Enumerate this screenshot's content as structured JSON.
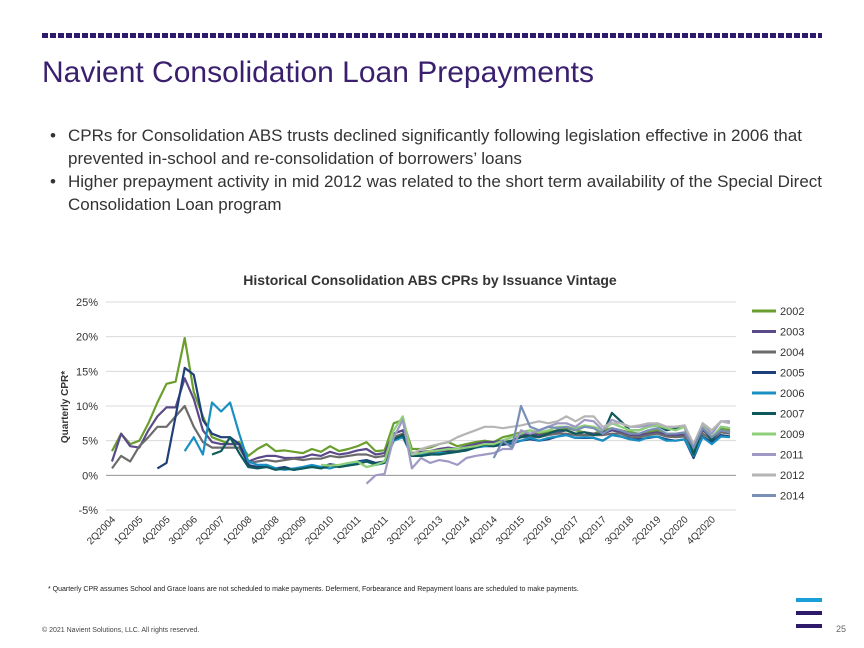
{
  "slide": {
    "title": "Navient Consolidation Loan Prepayments",
    "bullets": [
      "CPRs for Consolidation ABS trusts declined significantly following legislation effective in 2006 that prevented in-school and re-consolidation of borrowers’ loans",
      "Higher prepayment activity in mid 2012 was related to the short term availability of the Special Direct Consolidation Loan program"
    ],
    "footnote": "* Quarterly CPR assumes School and Grace loans are not scheduled to make payments. Deferment, Forbearance and Repayment loans are scheduled to make payments.",
    "copyright": "© 2021 Navient Solutions, LLC. All rights reserved.",
    "page_number": "25",
    "colors": {
      "title": "#3a1f6e",
      "logo_top": "#1aa0d8",
      "logo_mid": "#2e1a6b",
      "logo_bottom": "#2e1a6b"
    }
  },
  "chart_data": {
    "type": "line",
    "title": "Historical Consolidation ABS CPRs by Issuance Vintage",
    "ylabel": "Quarterly CPR*",
    "xlabel": "",
    "ylim": [
      -5,
      25
    ],
    "yticks": [
      -5,
      0,
      5,
      10,
      15,
      20,
      25
    ],
    "ytick_labels": [
      "-5%",
      "0%",
      "5%",
      "10%",
      "15%",
      "20%",
      "25%"
    ],
    "grid": true,
    "legend_position": "right",
    "x": [
      "2Q2004",
      "3Q2004",
      "4Q2004",
      "1Q2005",
      "2Q2005",
      "3Q2005",
      "4Q2005",
      "1Q2006",
      "2Q2006",
      "3Q2006",
      "4Q2006",
      "1Q2007",
      "2Q2007",
      "3Q2007",
      "4Q2007",
      "1Q2008",
      "2Q2008",
      "3Q2008",
      "4Q2008",
      "1Q2009",
      "2Q2009",
      "3Q2009",
      "4Q2009",
      "1Q2010",
      "2Q2010",
      "3Q2010",
      "4Q2010",
      "1Q2011",
      "2Q2011",
      "3Q2011",
      "4Q2011",
      "1Q2012",
      "2Q2012",
      "3Q2012",
      "4Q2012",
      "1Q2013",
      "2Q2013",
      "3Q2013",
      "4Q2013",
      "1Q2014",
      "2Q2014",
      "3Q2014",
      "4Q2014",
      "1Q2015",
      "2Q2015",
      "3Q2015",
      "4Q2015",
      "1Q2016",
      "2Q2016",
      "3Q2016",
      "4Q2016",
      "1Q2017",
      "2Q2017",
      "3Q2017",
      "4Q2017",
      "1Q2018",
      "2Q2018",
      "3Q2018",
      "4Q2018",
      "1Q2019",
      "2Q2019",
      "3Q2019",
      "4Q2019",
      "1Q2020",
      "2Q2020",
      "3Q2020",
      "4Q2020",
      "1Q2021",
      "2Q2021"
    ],
    "x_tick_labels": [
      "2Q2004",
      "1Q2005",
      "4Q2005",
      "3Q2006",
      "2Q2007",
      "1Q2008",
      "4Q2008",
      "3Q2009",
      "2Q2010",
      "1Q2011",
      "4Q2011",
      "3Q2012",
      "2Q2013",
      "1Q2014",
      "4Q2014",
      "3Q2015",
      "2Q2016",
      "1Q2017",
      "4Q2017",
      "3Q2018",
      "2Q2019",
      "1Q2020",
      "4Q2020"
    ],
    "series": [
      {
        "name": "2002",
        "color": "#6a9e2e",
        "values": [
          3.5,
          6.0,
          4.5,
          5.0,
          7.5,
          10.5,
          13.2,
          13.5,
          19.8,
          12.0,
          8.5,
          5.5,
          5.0,
          4.5,
          4.8,
          2.8,
          3.8,
          4.5,
          3.5,
          3.6,
          3.4,
          3.2,
          3.8,
          3.4,
          4.2,
          3.5,
          3.8,
          4.2,
          4.8,
          3.5,
          3.6,
          7.5,
          8.0,
          3.8,
          3.8,
          4.0,
          4.5,
          4.8,
          4.2,
          4.5,
          4.8,
          5.0,
          4.8,
          5.5,
          5.8,
          6.2,
          6.5,
          6.0,
          6.2,
          6.5,
          6.8,
          6.5,
          6.2,
          6.0,
          6.5,
          6.8,
          6.5,
          6.2,
          6.0,
          6.2,
          6.5,
          6.0,
          5.8,
          6.0,
          3.5,
          6.5,
          5.5,
          6.8,
          6.5
        ]
      },
      {
        "name": "2003",
        "color": "#5a4a8a",
        "values": [
          2.0,
          6.0,
          4.2,
          4.0,
          6.5,
          8.5,
          9.8,
          9.8,
          14.0,
          11.0,
          6.5,
          4.8,
          4.5,
          4.5,
          4.5,
          2.0,
          2.5,
          2.8,
          2.8,
          2.5,
          2.5,
          2.6,
          3.0,
          2.8,
          3.4,
          3.0,
          3.2,
          3.6,
          3.8,
          3.0,
          3.2,
          6.0,
          6.5,
          3.2,
          3.4,
          3.5,
          3.8,
          4.0,
          3.8,
          4.2,
          4.5,
          4.8,
          4.8,
          5.0,
          5.5,
          5.8,
          6.0,
          5.8,
          6.0,
          6.2,
          6.5,
          6.0,
          6.2,
          6.0,
          6.0,
          6.5,
          6.2,
          5.8,
          5.8,
          6.0,
          6.2,
          5.8,
          5.8,
          5.8,
          3.0,
          6.5,
          5.5,
          6.5,
          6.2
        ]
      },
      {
        "name": "2004",
        "color": "#6b6b6b",
        "values": [
          1.0,
          2.8,
          2.0,
          4.2,
          5.5,
          7.0,
          7.0,
          8.5,
          10.0,
          7.0,
          4.8,
          4.0,
          4.0,
          4.0,
          4.0,
          1.8,
          2.0,
          2.2,
          2.0,
          2.2,
          2.4,
          2.2,
          2.4,
          2.4,
          2.8,
          2.6,
          2.8,
          3.0,
          3.0,
          2.6,
          2.8,
          5.5,
          6.0,
          3.0,
          3.0,
          3.2,
          3.4,
          3.6,
          3.6,
          4.0,
          4.2,
          4.5,
          4.4,
          4.8,
          5.0,
          5.5,
          5.5,
          5.5,
          5.8,
          6.0,
          6.0,
          5.8,
          5.8,
          5.8,
          5.8,
          6.0,
          6.0,
          5.5,
          5.5,
          5.8,
          6.0,
          5.6,
          5.5,
          5.6,
          3.0,
          6.0,
          5.2,
          6.2,
          6.0
        ]
      },
      {
        "name": "2005",
        "color": "#1e3f7a",
        "values": [
          null,
          null,
          null,
          null,
          null,
          1.0,
          1.8,
          8.5,
          15.5,
          14.5,
          8.0,
          6.0,
          5.5,
          5.5,
          4.5,
          1.5,
          1.2,
          1.5,
          1.0,
          1.2,
          0.8,
          1.0,
          1.4,
          1.2,
          1.6,
          1.4,
          1.6,
          2.0,
          2.2,
          1.8,
          2.0,
          5.0,
          5.8,
          2.8,
          2.8,
          3.0,
          3.2,
          3.4,
          3.4,
          3.8,
          4.0,
          4.2,
          4.2,
          4.4,
          4.6,
          5.0,
          5.2,
          5.0,
          5.2,
          5.6,
          5.8,
          5.4,
          5.4,
          5.4,
          5.0,
          5.8,
          5.6,
          5.2,
          5.2,
          5.4,
          5.6,
          5.2,
          5.0,
          5.2,
          2.5,
          5.6,
          4.8,
          5.8,
          5.6
        ]
      },
      {
        "name": "2006",
        "color": "#1a8fc4",
        "values": [
          null,
          null,
          null,
          null,
          null,
          null,
          null,
          null,
          3.5,
          5.5,
          3.0,
          10.5,
          9.2,
          10.5,
          6.0,
          2.0,
          1.5,
          1.5,
          1.0,
          0.8,
          1.0,
          1.2,
          1.5,
          1.2,
          1.0,
          1.4,
          1.6,
          1.8,
          2.0,
          1.5,
          1.8,
          5.0,
          5.5,
          2.8,
          3.0,
          3.0,
          3.2,
          3.2,
          3.4,
          3.6,
          4.0,
          4.2,
          4.4,
          4.6,
          4.8,
          5.0,
          5.4,
          5.0,
          5.4,
          5.6,
          5.8,
          5.4,
          5.5,
          5.4,
          5.0,
          5.8,
          5.6,
          5.2,
          5.0,
          5.5,
          5.6,
          5.0,
          5.0,
          5.2,
          2.8,
          5.5,
          4.5,
          5.6,
          5.5
        ]
      },
      {
        "name": "2007",
        "color": "#0e5a5a",
        "values": [
          null,
          null,
          null,
          null,
          null,
          null,
          null,
          null,
          null,
          null,
          null,
          3.0,
          3.5,
          5.5,
          3.2,
          1.2,
          1.0,
          1.2,
          0.8,
          1.0,
          0.8,
          1.0,
          1.2,
          1.0,
          1.4,
          1.2,
          1.4,
          1.6,
          2.0,
          1.6,
          1.8,
          5.2,
          5.8,
          2.8,
          2.8,
          3.0,
          3.0,
          3.2,
          3.4,
          3.6,
          4.0,
          4.4,
          4.2,
          4.6,
          5.0,
          5.5,
          5.8,
          5.5,
          6.0,
          6.5,
          6.5,
          6.0,
          6.2,
          5.8,
          6.0,
          9.0,
          7.8,
          6.5,
          6.5,
          7.0,
          7.2,
          6.5,
          6.8,
          7.0,
          3.0,
          7.0,
          5.0,
          7.0,
          6.8
        ]
      },
      {
        "name": "2009",
        "color": "#8fcf7a",
        "values": [
          null,
          null,
          null,
          null,
          null,
          null,
          null,
          null,
          null,
          null,
          null,
          null,
          null,
          null,
          null,
          null,
          null,
          null,
          null,
          null,
          null,
          null,
          null,
          1.5,
          1.4,
          1.5,
          1.8,
          2.0,
          1.2,
          1.5,
          2.0,
          6.5,
          8.5,
          3.0,
          3.2,
          3.5,
          3.6,
          3.8,
          3.8,
          4.0,
          4.2,
          4.5,
          4.5,
          5.0,
          5.5,
          6.0,
          6.5,
          6.2,
          6.5,
          7.0,
          7.0,
          6.8,
          7.2,
          7.0,
          6.5,
          7.5,
          7.0,
          6.5,
          6.5,
          7.0,
          7.2,
          6.8,
          6.5,
          7.0,
          4.0,
          7.2,
          5.5,
          7.0,
          6.8
        ]
      },
      {
        "name": "2011",
        "color": "#9f9ac4",
        "values": [
          null,
          null,
          null,
          null,
          null,
          null,
          null,
          null,
          null,
          null,
          null,
          null,
          null,
          null,
          null,
          null,
          null,
          null,
          null,
          null,
          null,
          null,
          null,
          null,
          null,
          null,
          null,
          null,
          -1.2,
          0.0,
          0.2,
          5.5,
          8.0,
          1.0,
          2.5,
          1.8,
          2.2,
          2.0,
          1.5,
          2.5,
          2.8,
          3.0,
          3.2,
          3.8,
          3.8,
          6.5,
          6.0,
          6.5,
          7.0,
          7.5,
          7.5,
          7.0,
          8.0,
          7.8,
          6.5,
          8.0,
          7.5,
          7.0,
          7.0,
          7.2,
          7.5,
          7.0,
          7.0,
          7.2,
          4.0,
          7.5,
          6.0,
          7.8,
          7.8
        ]
      },
      {
        "name": "2012",
        "color": "#b5b5b5",
        "values": [
          null,
          null,
          null,
          null,
          null,
          null,
          null,
          null,
          null,
          null,
          null,
          null,
          null,
          null,
          null,
          null,
          null,
          null,
          null,
          null,
          null,
          null,
          null,
          null,
          null,
          null,
          null,
          null,
          null,
          null,
          null,
          null,
          null,
          3.0,
          3.8,
          4.2,
          4.5,
          4.8,
          5.5,
          6.0,
          6.5,
          7.0,
          7.0,
          6.8,
          7.0,
          7.2,
          7.5,
          7.8,
          7.5,
          7.8,
          8.5,
          7.8,
          8.5,
          8.5,
          7.0,
          7.5,
          7.5,
          7.0,
          7.2,
          7.5,
          7.5,
          7.0,
          7.0,
          7.2,
          4.5,
          7.5,
          6.5,
          7.8,
          7.5
        ]
      },
      {
        "name": "2014",
        "color": "#7a8fb8",
        "values": [
          null,
          null,
          null,
          null,
          null,
          null,
          null,
          null,
          null,
          null,
          null,
          null,
          null,
          null,
          null,
          null,
          null,
          null,
          null,
          null,
          null,
          null,
          null,
          null,
          null,
          null,
          null,
          null,
          null,
          null,
          null,
          null,
          null,
          null,
          null,
          null,
          null,
          null,
          null,
          null,
          null,
          null,
          2.5,
          5.0,
          4.0,
          10.0,
          7.0,
          6.5,
          7.0,
          6.8,
          7.0,
          6.5,
          7.0,
          6.8,
          6.0,
          6.8,
          6.5,
          6.0,
          6.0,
          6.5,
          6.8,
          6.0,
          6.0,
          6.2,
          4.0,
          6.8,
          5.5,
          6.5,
          6.2
        ]
      }
    ]
  }
}
